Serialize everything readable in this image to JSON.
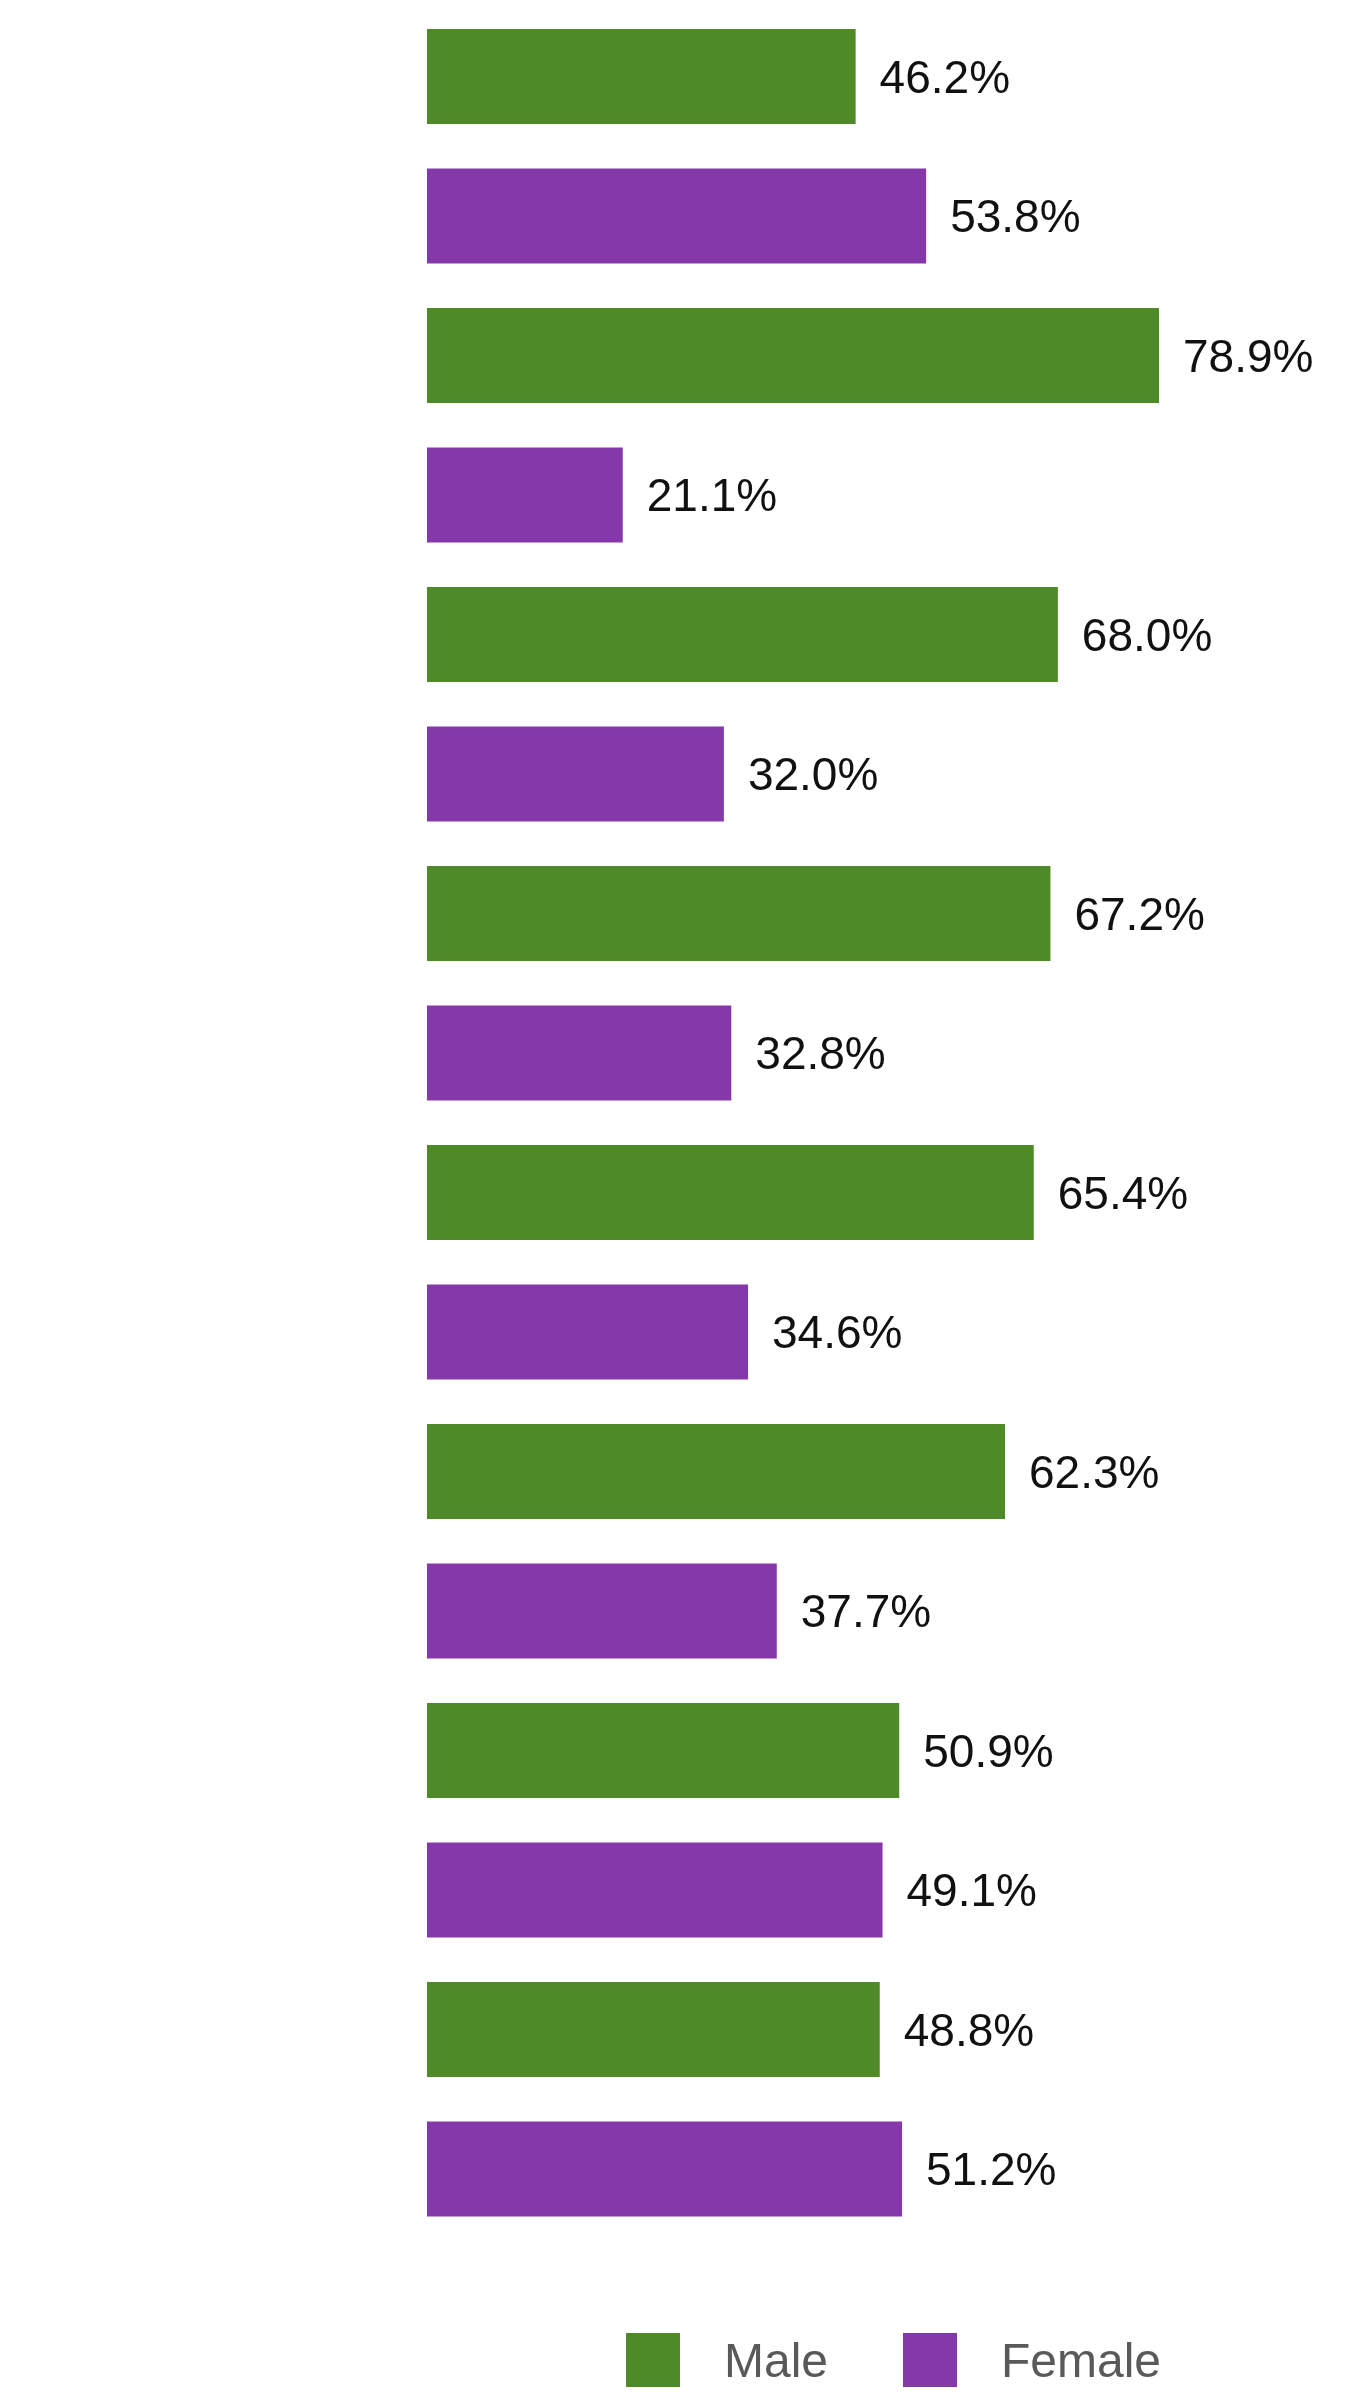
{
  "chart_data": {
    "type": "bar",
    "orientation": "horizontal",
    "categories": [
      null,
      null,
      null,
      null,
      null,
      null,
      null,
      null
    ],
    "series": [
      {
        "name": "Male",
        "color": "#4f8a28",
        "values": [
          46.2,
          78.9,
          68.0,
          67.2,
          65.4,
          62.3,
          50.9,
          48.8
        ],
        "value_labels": [
          "46.2%",
          "78.9%",
          "68.0%",
          "67.2%",
          "65.4%",
          "62.3%",
          "50.9%",
          "48.8%"
        ]
      },
      {
        "name": "Female",
        "color": "#8438aa",
        "values": [
          53.8,
          21.1,
          32.0,
          32.8,
          34.6,
          37.7,
          49.1,
          51.2
        ],
        "value_labels": [
          "53.8%",
          "21.1%",
          "32.0%",
          "32.8%",
          "34.6%",
          "37.7%",
          "49.1%",
          "51.2%"
        ]
      }
    ],
    "legend": "bottom",
    "grid": false
  }
}
